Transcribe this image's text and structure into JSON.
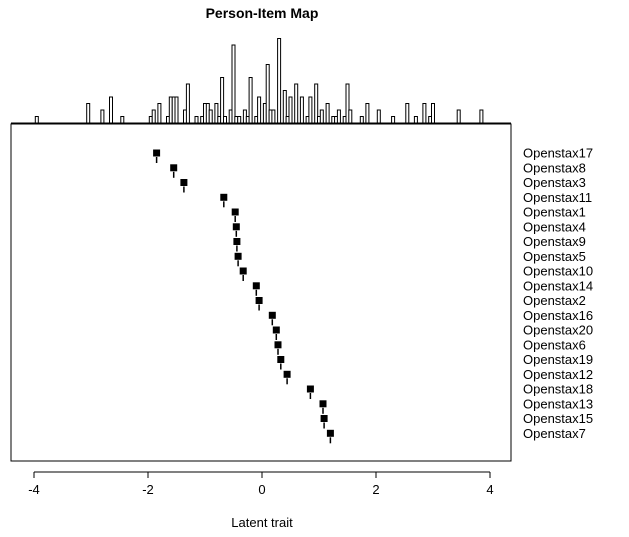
{
  "chart_data": {
    "type": "scatter",
    "title": "Person-Item Map",
    "xlabel": "Latent trait",
    "xlim": [
      -4,
      4
    ],
    "xticks": [
      -4,
      -2,
      0,
      2,
      4
    ],
    "person_histogram": {
      "bins": [
        -3.95,
        -3.05,
        -2.8,
        -2.65,
        -2.45,
        -1.95,
        -1.9,
        -1.8,
        -1.65,
        -1.6,
        -1.55,
        -1.5,
        -1.35,
        -1.3,
        -1.15,
        -1.05,
        -1.0,
        -0.95,
        -0.9,
        -0.8,
        -0.75,
        -0.7,
        -0.65,
        -0.55,
        -0.5,
        -0.45,
        -0.4,
        -0.3,
        -0.25,
        -0.2,
        -0.1,
        -0.05,
        0.05,
        0.1,
        0.15,
        0.2,
        0.3,
        0.4,
        0.45,
        0.5,
        0.6,
        0.7,
        0.8,
        0.85,
        0.95,
        1.0,
        1.05,
        1.15,
        1.25,
        1.3,
        1.35,
        1.45,
        1.5,
        1.55,
        1.75,
        1.85,
        2.05,
        2.3,
        2.55,
        2.7,
        2.85,
        2.95,
        3.0,
        3.45,
        3.85
      ],
      "counts": [
        1,
        3,
        2,
        4,
        1,
        1,
        2,
        3,
        1,
        4,
        4,
        4,
        2,
        6,
        1,
        1,
        3,
        3,
        2,
        3,
        1,
        7,
        1,
        2,
        12,
        1,
        1,
        2,
        1,
        7,
        1,
        4,
        3,
        9,
        2,
        2,
        13,
        5,
        1,
        4,
        6,
        4,
        1,
        4,
        6,
        1,
        2,
        3,
        1,
        1,
        2,
        1,
        6,
        2,
        1,
        3,
        2,
        1,
        3,
        1,
        3,
        1,
        3,
        2,
        2
      ]
    },
    "items": [
      "Openstax17",
      "Openstax8",
      "Openstax3",
      "Openstax11",
      "Openstax1",
      "Openstax4",
      "Openstax9",
      "Openstax5",
      "Openstax10",
      "Openstax14",
      "Openstax2",
      "Openstax16",
      "Openstax20",
      "Openstax6",
      "Openstax19",
      "Openstax12",
      "Openstax18",
      "Openstax13",
      "Openstax15",
      "Openstax7"
    ],
    "locations": [
      -1.85,
      -1.55,
      -1.37,
      -0.67,
      -0.47,
      -0.45,
      -0.44,
      -0.42,
      -0.33,
      -0.1,
      -0.05,
      0.18,
      0.25,
      0.28,
      0.33,
      0.44,
      0.85,
      1.07,
      1.09,
      1.2
    ]
  }
}
